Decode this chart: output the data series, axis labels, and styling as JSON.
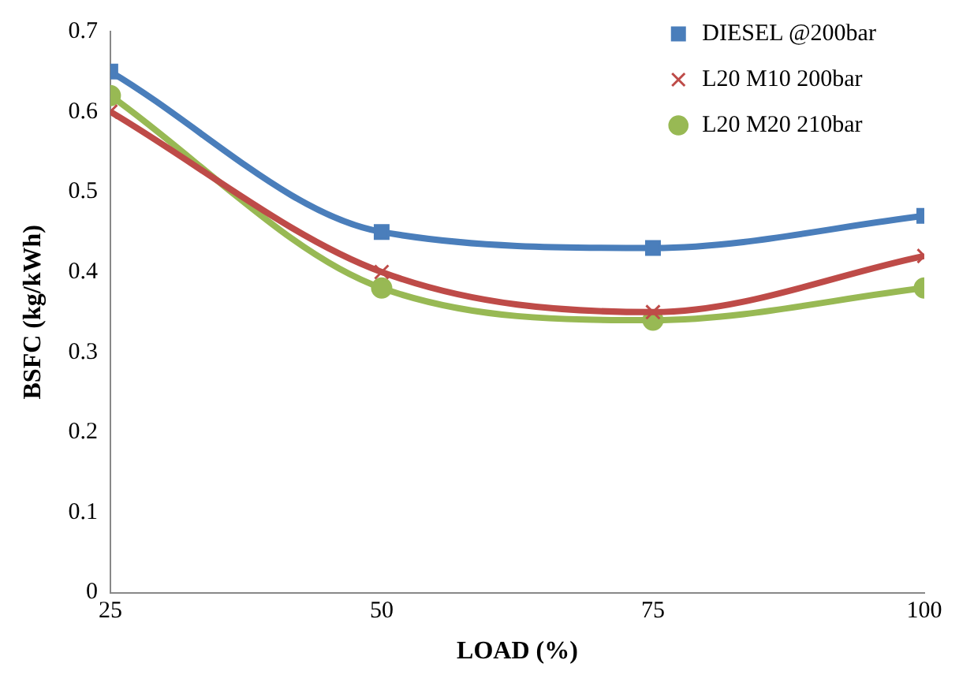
{
  "chart_data": {
    "type": "line",
    "xlabel": "LOAD (%)",
    "ylabel": "BSFC (kg/kWh)",
    "x": [
      25,
      50,
      75,
      100
    ],
    "xlim": [
      25,
      100
    ],
    "xticks": [
      25,
      50,
      75,
      100
    ],
    "ylim": [
      0,
      0.7
    ],
    "yticks": [
      0,
      0.1,
      0.2,
      0.3,
      0.4,
      0.5,
      0.6,
      0.7
    ],
    "grid": false,
    "legend": "top right",
    "line_style": "solid",
    "series": [
      {
        "name": "DIESEL @200bar",
        "color": "#4a7ebb",
        "marker": "square",
        "values": [
          0.65,
          0.45,
          0.43,
          0.47
        ]
      },
      {
        "name": "L20 M10 200bar",
        "color": "#be4b48",
        "marker": "cross",
        "values": [
          0.6,
          0.4,
          0.35,
          0.42
        ]
      },
      {
        "name": "L20 M20 210bar",
        "color": "#98b954",
        "marker": "circle",
        "values": [
          0.62,
          0.38,
          0.34,
          0.38
        ]
      }
    ]
  }
}
